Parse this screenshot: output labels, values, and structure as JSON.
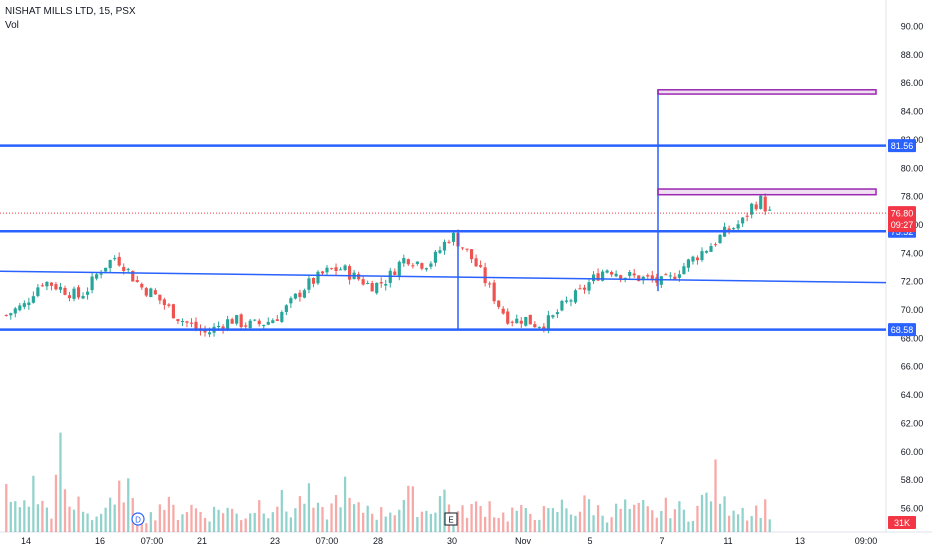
{
  "header": {
    "title": "NISHAT MILLS LTD, 15, PSX",
    "volume_label": "Vol"
  },
  "chart_data": {
    "type": "candlestick",
    "title": "NISHAT MILLS LTD, 15, PSX",
    "ylim": [
      55,
      91
    ],
    "y_ticks": [
      "90.00",
      "88.00",
      "86.00",
      "84.00",
      "82.00",
      "80.00",
      "78.00",
      "76.00",
      "74.00",
      "72.00",
      "70.00",
      "68.00",
      "66.00",
      "64.00",
      "62.00",
      "60.00",
      "58.00",
      "56.00"
    ],
    "x_ticks": [
      "14",
      "16",
      "07:00",
      "21",
      "23",
      "07:00",
      "28",
      "30",
      "Nov",
      "5",
      "7",
      "11",
      "13",
      "09:00"
    ],
    "last_price": "76.80",
    "countdown": "09:27",
    "volume_last": "31K",
    "horizontal_levels": [
      {
        "value": 81.56,
        "label": "81.56",
        "color": "#2962ff"
      },
      {
        "value": 75.52,
        "label": "75.52",
        "color": "#2962ff"
      },
      {
        "value": 68.58,
        "label": "68.58",
        "color": "#2962ff"
      }
    ],
    "trendline": {
      "from": [
        "start",
        72.7
      ],
      "to": [
        "end",
        71.9
      ]
    },
    "rectangles": [
      {
        "top": 85.5,
        "bottom": 85.2,
        "color": "#9c27b0"
      },
      {
        "top": 78.5,
        "bottom": 78.1,
        "color": "#9c27b0"
      }
    ],
    "markers": [
      {
        "label": "D"
      },
      {
        "label": "E"
      }
    ],
    "colors": {
      "up": "#26a69a",
      "down": "#ef5350",
      "level": "#2962ff",
      "price": "#f23645",
      "zone": "#9c27b0"
    },
    "price_path": [
      69.6,
      70.0,
      70.3,
      71.3,
      72.0,
      71.8,
      71.5,
      71.2,
      70.9,
      71.5,
      72.5,
      73.2,
      73.7,
      73.1,
      72.2,
      71.5,
      71.2,
      70.6,
      70.0,
      69.4,
      69.0,
      68.6,
      68.3,
      68.7,
      69.1,
      69.3,
      69.0,
      68.9,
      69.0,
      69.2,
      69.6,
      70.2,
      71.0,
      71.7,
      72.1,
      72.6,
      72.8,
      72.9,
      72.4,
      72.1,
      71.7,
      71.8,
      72.2,
      73.1,
      73.7,
      73.4,
      73.2,
      73.5,
      74.5,
      75.3,
      74.6,
      73.8,
      72.8,
      71.7,
      70.5,
      69.5,
      69.2,
      69.4,
      69.0,
      69.0,
      69.3,
      70.1,
      70.7,
      71.1,
      71.8,
      72.4,
      72.9,
      72.7,
      72.4,
      72.3,
      72.2,
      72.1,
      71.9,
      72.1,
      72.8,
      73.3,
      73.8,
      74.3,
      74.8,
      75.4,
      75.8,
      76.2,
      77.3,
      77.7,
      76.8
    ],
    "volume_path": [
      42,
      28,
      35,
      50,
      30,
      25,
      85,
      20,
      38,
      22,
      18,
      30,
      26,
      65,
      24,
      20,
      18,
      35,
      28,
      22,
      30,
      26,
      20,
      24,
      30,
      22,
      18,
      26,
      35,
      28,
      40,
      22,
      30,
      45,
      25,
      20,
      30,
      55,
      28,
      24,
      32,
      20,
      26,
      28,
      40,
      36,
      22,
      30,
      48,
      25,
      20,
      30,
      26,
      35,
      22,
      18,
      26,
      20,
      24,
      22,
      20,
      30,
      28,
      24,
      36,
      26,
      20,
      24,
      30,
      22,
      28,
      20,
      24,
      30,
      26,
      20,
      28,
      40,
      60,
      30,
      34,
      28,
      22,
      30,
      26
    ]
  }
}
